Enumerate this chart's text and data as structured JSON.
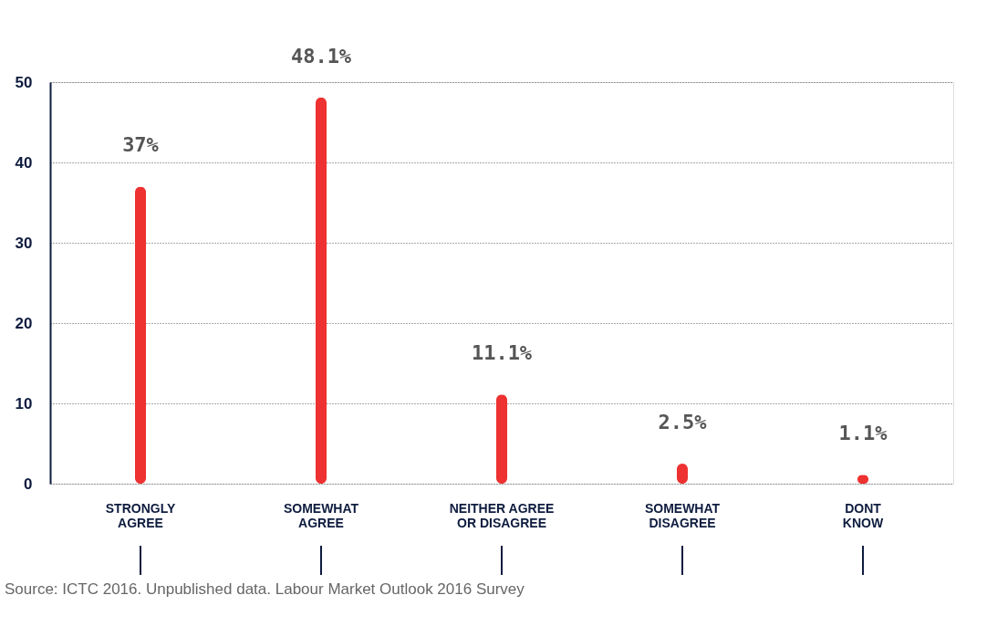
{
  "chart_data": {
    "type": "bar",
    "categories": [
      "STRONGLY AGREE",
      "SOMEWHAT AGREE",
      "NEITHER AGREE OR DISAGREE",
      "SOMEWHAT DISAGREE",
      "DONT KNOW"
    ],
    "values": [
      37,
      48.1,
      11.1,
      2.5,
      1.1
    ],
    "value_labels": [
      "37%",
      "48.1%",
      "11.1%",
      "2.5%",
      "1.1%"
    ],
    "color": "#ee3131",
    "ylim": [
      0,
      50
    ],
    "yticks": [
      0,
      10,
      20,
      30,
      40,
      50
    ],
    "grid": "y",
    "annotations": [
      "Source: ICTC 2016. Unpublished data. Labour Market Outlook 2016 Survey"
    ]
  }
}
